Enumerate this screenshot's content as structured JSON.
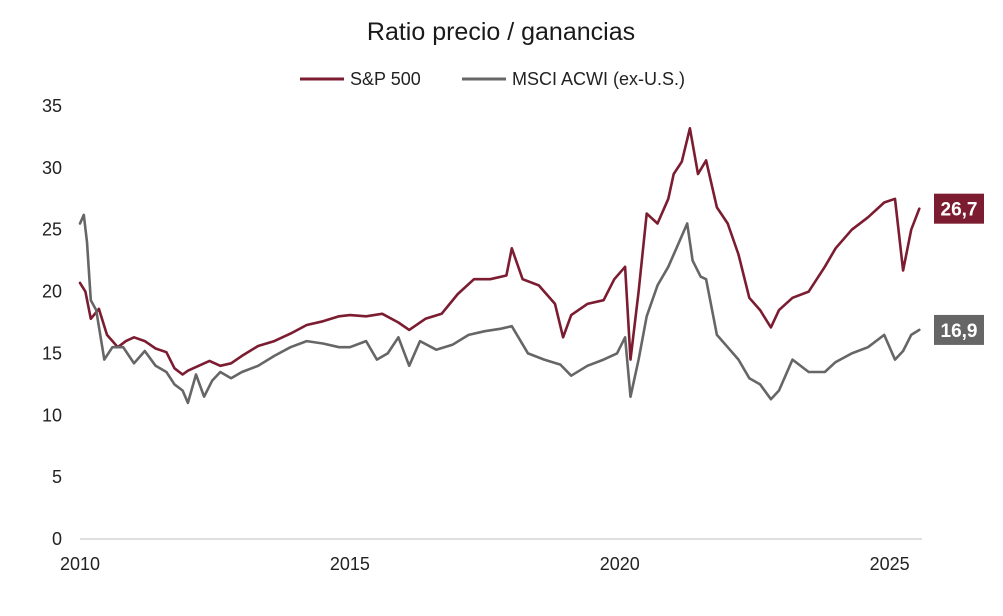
{
  "chart_data": {
    "type": "line",
    "title": "Ratio precio / ganancias",
    "xlabel": "",
    "ylabel": "",
    "xlim": [
      2010,
      2025.6
    ],
    "ylim": [
      0,
      35
    ],
    "y_ticks": [
      "0",
      "5",
      "10",
      "15",
      "20",
      "25",
      "30",
      "35"
    ],
    "x_ticks": [
      {
        "value": 2010,
        "label": "2010"
      },
      {
        "value": 2015,
        "label": "2015"
      },
      {
        "value": 2020,
        "label": "2020"
      },
      {
        "value": 2025,
        "label": "2025"
      }
    ],
    "grid": false,
    "legend_position": "top-center",
    "series": [
      {
        "name": "S&P 500",
        "color": "#7b1c31",
        "end_label": "26,7",
        "x": [
          2010.0,
          2010.1,
          2010.2,
          2010.35,
          2010.5,
          2010.7,
          2010.85,
          2011.0,
          2011.2,
          2011.4,
          2011.6,
          2011.75,
          2011.9,
          2012.0,
          2012.2,
          2012.4,
          2012.6,
          2012.8,
          2013.0,
          2013.3,
          2013.6,
          2013.9,
          2014.2,
          2014.5,
          2014.8,
          2015.0,
          2015.3,
          2015.6,
          2015.9,
          2016.1,
          2016.4,
          2016.7,
          2017.0,
          2017.3,
          2017.6,
          2017.9,
          2018.0,
          2018.2,
          2018.5,
          2018.8,
          2018.95,
          2019.1,
          2019.4,
          2019.7,
          2019.9,
          2020.1,
          2020.2,
          2020.35,
          2020.5,
          2020.7,
          2020.9,
          2021.0,
          2021.15,
          2021.3,
          2021.45,
          2021.6,
          2021.8,
          2022.0,
          2022.2,
          2022.4,
          2022.6,
          2022.8,
          2022.95,
          2023.2,
          2023.5,
          2023.8,
          2024.0,
          2024.3,
          2024.6,
          2024.9,
          2025.1,
          2025.25,
          2025.4,
          2025.55
        ],
        "y": [
          20.7,
          20.0,
          17.8,
          18.6,
          16.5,
          15.5,
          16.0,
          16.3,
          16.0,
          15.4,
          15.1,
          13.8,
          13.3,
          13.6,
          14.0,
          14.4,
          14.0,
          14.2,
          14.8,
          15.6,
          16.0,
          16.6,
          17.3,
          17.6,
          18.0,
          18.1,
          18.0,
          18.2,
          17.5,
          16.9,
          17.8,
          18.2,
          19.8,
          21.0,
          21.0,
          21.3,
          23.5,
          21.0,
          20.5,
          19.0,
          16.3,
          18.1,
          19.0,
          19.3,
          21.0,
          22.0,
          14.5,
          20.0,
          26.3,
          25.5,
          27.5,
          29.5,
          30.5,
          33.2,
          29.5,
          30.6,
          26.8,
          25.5,
          23.0,
          19.5,
          18.5,
          17.1,
          18.5,
          19.5,
          20.0,
          22.0,
          23.5,
          25.0,
          26.0,
          27.2,
          27.5,
          21.7,
          25.0,
          26.7
        ]
      },
      {
        "name": "MSCI ACWI (ex-U.S.)",
        "color": "#666666",
        "end_label": "16,9",
        "x": [
          2010.0,
          2010.07,
          2010.13,
          2010.2,
          2010.3,
          2010.45,
          2010.6,
          2010.8,
          2011.0,
          2011.2,
          2011.4,
          2011.6,
          2011.75,
          2011.9,
          2012.0,
          2012.15,
          2012.3,
          2012.45,
          2012.6,
          2012.8,
          2013.0,
          2013.3,
          2013.6,
          2013.9,
          2014.2,
          2014.5,
          2014.8,
          2015.0,
          2015.3,
          2015.5,
          2015.7,
          2015.9,
          2016.1,
          2016.3,
          2016.6,
          2016.9,
          2017.2,
          2017.5,
          2017.8,
          2018.0,
          2018.3,
          2018.6,
          2018.9,
          2019.1,
          2019.4,
          2019.7,
          2019.95,
          2020.1,
          2020.2,
          2020.35,
          2020.5,
          2020.7,
          2020.9,
          2021.1,
          2021.25,
          2021.35,
          2021.5,
          2021.6,
          2021.8,
          2022.0,
          2022.2,
          2022.4,
          2022.6,
          2022.8,
          2022.95,
          2023.2,
          2023.5,
          2023.8,
          2024.0,
          2024.3,
          2024.6,
          2024.9,
          2025.1,
          2025.25,
          2025.4,
          2025.55
        ],
        "y": [
          25.5,
          26.2,
          24.0,
          19.3,
          18.5,
          14.5,
          15.5,
          15.5,
          14.2,
          15.2,
          14.0,
          13.5,
          12.5,
          12.0,
          11.0,
          13.3,
          11.5,
          12.8,
          13.5,
          13.0,
          13.5,
          14.0,
          14.8,
          15.5,
          16.0,
          15.8,
          15.5,
          15.5,
          16.0,
          14.5,
          15.0,
          16.3,
          14.0,
          16.0,
          15.3,
          15.7,
          16.5,
          16.8,
          17.0,
          17.2,
          15.0,
          14.5,
          14.1,
          13.2,
          14.0,
          14.5,
          15.0,
          16.3,
          11.5,
          14.5,
          18.0,
          20.5,
          22.0,
          24.0,
          25.5,
          22.5,
          21.2,
          21.0,
          16.5,
          15.5,
          14.5,
          13.0,
          12.5,
          11.3,
          12.0,
          14.5,
          13.5,
          13.5,
          14.3,
          15.0,
          15.5,
          16.5,
          14.5,
          15.2,
          16.5,
          16.9
        ]
      }
    ]
  }
}
